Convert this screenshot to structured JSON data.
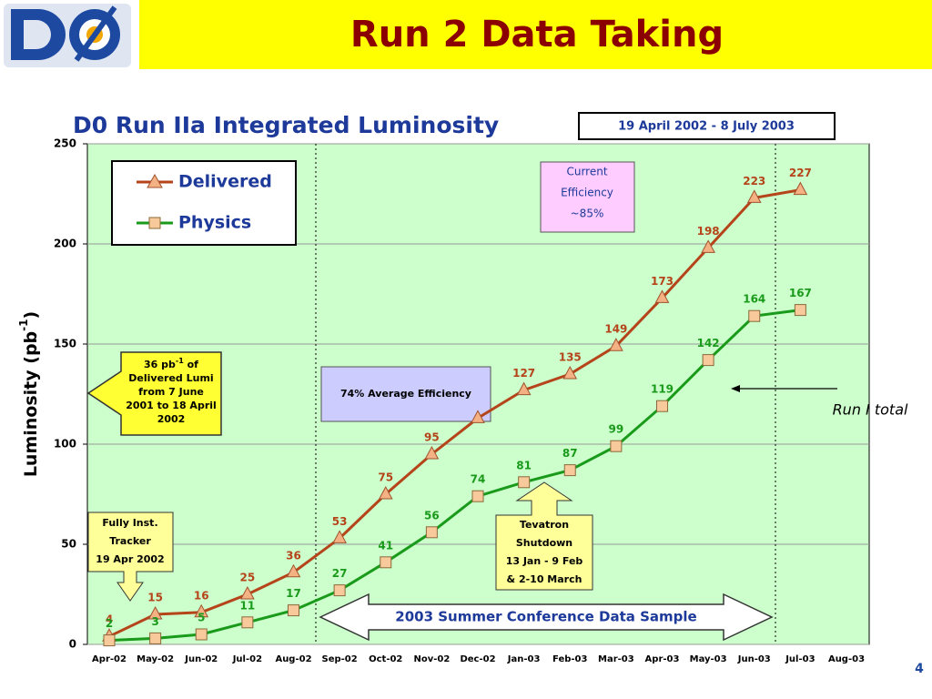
{
  "header": {
    "title": "Run 2 Data Taking"
  },
  "chart_data": {
    "type": "line",
    "title": "D0 Run IIa Integrated Luminosity",
    "subtitle": "19 April 2002 - 8 July 2003",
    "ylabel": {
      "text": "Luminosity (pb",
      "sup": "-1",
      "end": ")"
    },
    "categories": [
      "Apr-02",
      "May-02",
      "Jun-02",
      "Jul-02",
      "Aug-02",
      "Sep-02",
      "Oct-02",
      "Nov-02",
      "Dec-02",
      "Jan-03",
      "Feb-03",
      "Mar-03",
      "Apr-03",
      "May-03",
      "Jun-03",
      "Jul-03",
      "Aug-03"
    ],
    "series": [
      {
        "name": "Delivered",
        "color": "#b5441a",
        "values": [
          4,
          15,
          16,
          25,
          36,
          53,
          75,
          95,
          113,
          127,
          135,
          149,
          173,
          198,
          223,
          227,
          null
        ],
        "value_labels": [
          "4",
          "15",
          "16",
          "25",
          "36",
          "53",
          "75",
          "95",
          null,
          "127",
          "135",
          "149",
          "173",
          "198",
          "223",
          "227",
          null
        ]
      },
      {
        "name": "Physics",
        "color": "#1a9a1a",
        "values": [
          2,
          3,
          5,
          11,
          17,
          27,
          41,
          56,
          74,
          81,
          87,
          99,
          119,
          142,
          164,
          167,
          null
        ],
        "value_labels": [
          "2",
          "3",
          "5",
          "11",
          "17",
          "27",
          "41",
          "56",
          "74",
          "81",
          "87",
          "99",
          "119",
          "142",
          "164",
          "167",
          null
        ]
      }
    ],
    "ylim": [
      0,
      250
    ],
    "yticks": [
      0,
      50,
      100,
      150,
      200,
      250
    ],
    "grid": true,
    "annotations": {
      "efficiency": [
        "Current",
        "Efficiency",
        "~85%"
      ],
      "average": "74% Average Efficiency",
      "run1": [
        "36 pb",
        "-1",
        " of",
        "Delivered Lumi",
        "from  7 June",
        "2001 to 18 April",
        "2002"
      ],
      "tracker": [
        "Fully Inst.",
        "Tracker",
        "19 Apr 2002"
      ],
      "shutdown": [
        "Tevatron",
        "Shutdown",
        "13 Jan - 9 Feb",
        "& 2-10 March"
      ],
      "sample": "2003 Summer Conference Data Sample",
      "run1_total": "Run I total"
    }
  },
  "page_number": "4"
}
